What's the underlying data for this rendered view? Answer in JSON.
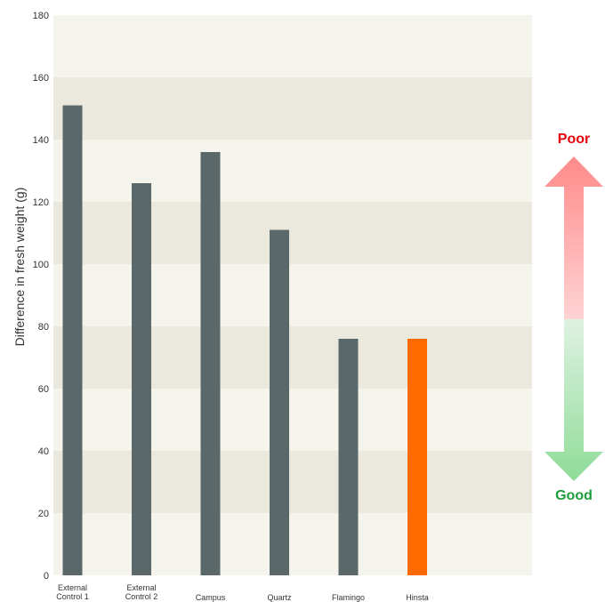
{
  "chart_data": {
    "type": "bar",
    "categories": [
      "External Control 1",
      "External Control 2",
      "Campus",
      "Quartz",
      "Flamingo",
      "Hinsta"
    ],
    "category_lines": [
      [
        "External",
        "Control 1"
      ],
      [
        "External",
        "Control 2"
      ],
      [
        "Campus"
      ],
      [
        "Quartz"
      ],
      [
        "Flamingo"
      ],
      [
        "Hinsta"
      ]
    ],
    "values": [
      151,
      126,
      136,
      111,
      76,
      76
    ],
    "bar_colors": [
      "#5a6869",
      "#5a6869",
      "#5a6869",
      "#5a6869",
      "#5a6869",
      "#ff6a00"
    ],
    "ylabel": "Difference in fresh weight (g)",
    "ylim": [
      0,
      180
    ],
    "yticks": [
      0,
      20,
      40,
      60,
      80,
      100,
      120,
      140,
      160,
      180
    ],
    "grid": "alternating horizontal bands",
    "band_colors": [
      "#f4f3ec",
      "#ebe9dd"
    ]
  },
  "scale_indicator": {
    "top_label": "Poor",
    "bottom_label": "Good",
    "top_color": "#e8000b",
    "bottom_color": "#1e9e3a"
  }
}
